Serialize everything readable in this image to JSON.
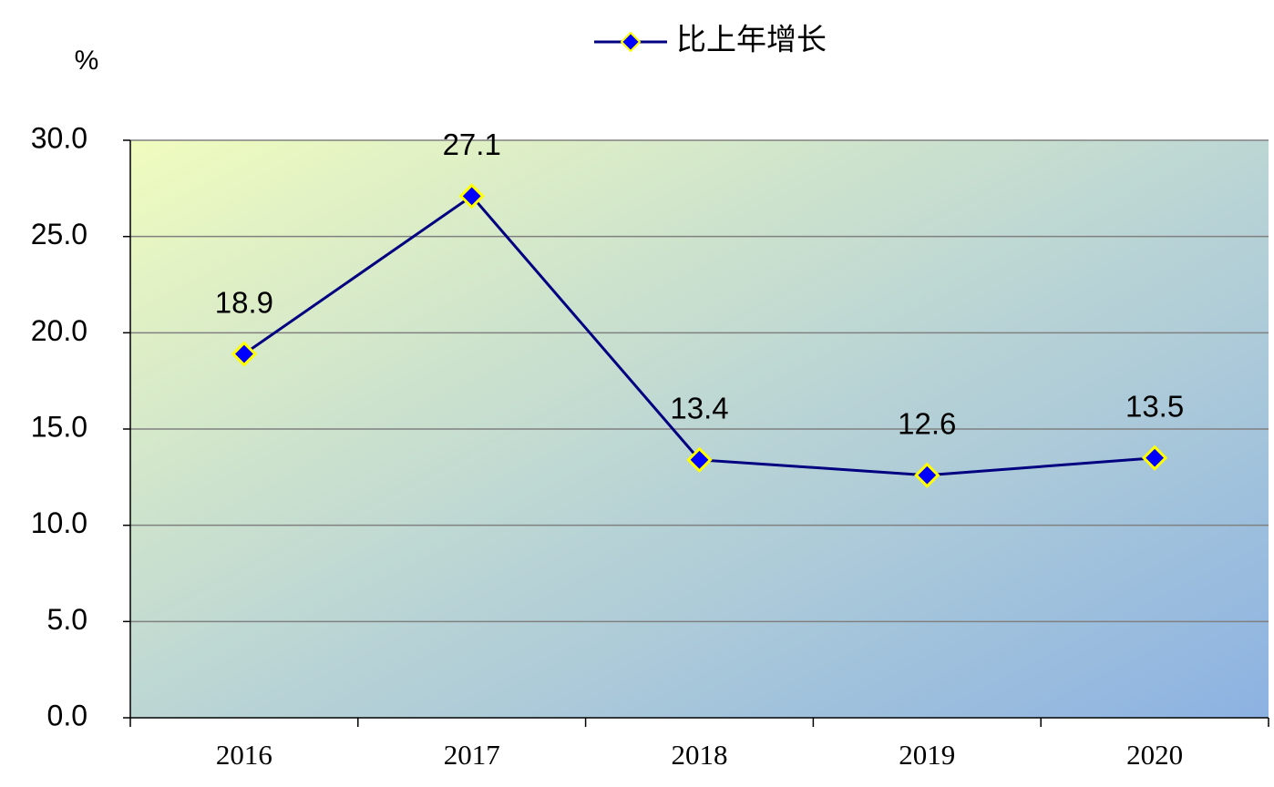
{
  "chart_data": {
    "type": "line",
    "y_label": "%",
    "categories": [
      "2016",
      "2017",
      "2018",
      "2019",
      "2020"
    ],
    "series": [
      {
        "name": "比上年增长",
        "color": "#000080",
        "marker_color": "#0000ff",
        "marker_edge": "#ffff00",
        "values": [
          18.9,
          27.1,
          13.4,
          12.6,
          13.5
        ]
      }
    ],
    "ylim": [
      0,
      30
    ],
    "yticks": [
      {
        "value": 0,
        "label": "0.0"
      },
      {
        "value": 5,
        "label": "5.0"
      },
      {
        "value": 10,
        "label": "10.0"
      },
      {
        "value": 15,
        "label": "15.0"
      },
      {
        "value": 20,
        "label": "20.0"
      },
      {
        "value": 25,
        "label": "25.0"
      },
      {
        "value": 30,
        "label": "30.0"
      }
    ],
    "grid": true,
    "legend": "top"
  }
}
